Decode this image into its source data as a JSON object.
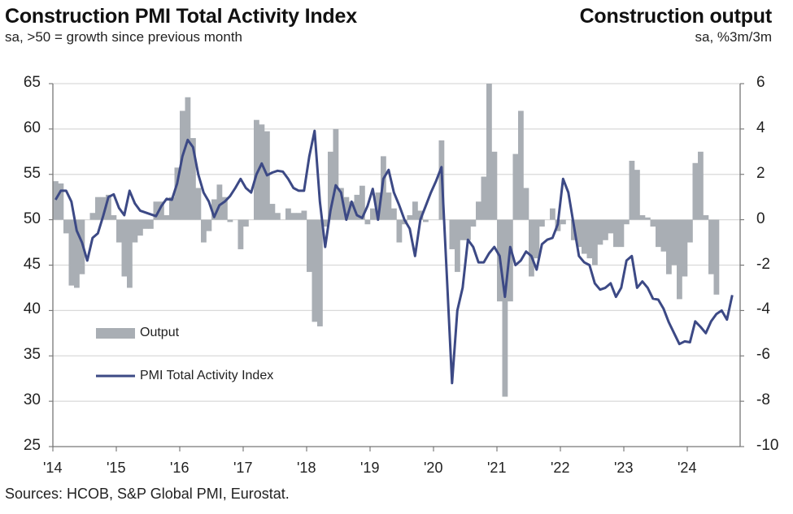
{
  "header": {
    "left_title": "Construction PMI Total Activity Index",
    "left_subtitle": "sa, >50 = growth since previous month",
    "right_title": "Construction output",
    "right_subtitle": "sa, %3m/3m"
  },
  "source": "Sources: HCOB, S&P Global PMI, Eurostat.",
  "colors": {
    "output_bars": "#a9aeb4",
    "pmi_line": "#3c4985",
    "grid": "#d9d9d9"
  },
  "chart_data": {
    "type": "bar+line",
    "x_tick_labels": [
      "'14",
      "'15",
      "'16",
      "'17",
      "'18",
      "'19",
      "'20",
      "'21",
      "'22",
      "'23",
      "'24"
    ],
    "frequency": "monthly",
    "start_month": "2014-01",
    "left_axis": {
      "ylim": [
        25,
        65
      ],
      "ticks": [
        65,
        60,
        55,
        50,
        45,
        40,
        35,
        30,
        25
      ]
    },
    "right_axis": {
      "ylim": [
        -10,
        6
      ],
      "ticks": [
        6,
        4,
        2,
        0,
        -2,
        -4,
        -6,
        -8,
        -10
      ]
    },
    "grid": true,
    "legend_placement": "bottom-left",
    "series": [
      {
        "name": "Output",
        "type": "bar",
        "axis": "right",
        "values": [
          1.7,
          1.6,
          -0.6,
          -2.9,
          -3.0,
          -2.4,
          0.0,
          0.3,
          1.0,
          1.0,
          1.1,
          0.2,
          -1.0,
          -2.5,
          -3.0,
          -1.0,
          -0.7,
          -0.4,
          -0.4,
          0.8,
          0.8,
          0.2,
          1.0,
          2.3,
          4.8,
          5.4,
          3.6,
          1.4,
          -1.0,
          -0.5,
          0.9,
          1.55,
          1.0,
          -0.1,
          0.0,
          -1.3,
          -0.3,
          0.0,
          4.4,
          4.2,
          3.9,
          0.7,
          0.3,
          0.0,
          0.5,
          0.3,
          0.3,
          0.4,
          -2.3,
          -4.5,
          -4.7,
          -0.3,
          3.0,
          4.0,
          1.4,
          1.0,
          0.8,
          1.1,
          1.5,
          -0.2,
          0.5,
          1.2,
          2.8,
          1.2,
          0.5,
          -1.0,
          -0.2,
          0.2,
          0.8,
          0.4,
          -0.1,
          0.0,
          0.0,
          3.5,
          0.0,
          -1.3,
          -2.3,
          -0.9,
          -0.9,
          -0.3,
          0.8,
          1.9,
          6.0,
          3.0,
          -3.6,
          -7.8,
          -3.6,
          2.9,
          4.8,
          1.4,
          -2.5,
          -1.7,
          -0.3,
          0.0,
          0.5,
          -0.5,
          -0.2,
          0.0,
          -0.9,
          -1.2,
          -1.5,
          -1.7,
          -2.0,
          -1.1,
          -0.9,
          -0.6,
          -1.2,
          -1.2,
          -0.2,
          2.6,
          2.2,
          0.2,
          0.1,
          -0.3,
          -1.2,
          -1.4,
          -2.4,
          -2.0,
          -3.5,
          -2.5,
          -1.0,
          2.5,
          3.0,
          0.2,
          -2.4,
          -3.3
        ]
      },
      {
        "name": "PMI Total Activity Index",
        "type": "line",
        "axis": "left",
        "values": [
          52.2,
          53.2,
          53.2,
          52.0,
          48.8,
          47.5,
          45.5,
          48.0,
          48.5,
          50.4,
          52.5,
          52.8,
          51.3,
          50.5,
          53.2,
          51.8,
          51.0,
          50.8,
          50.6,
          50.4,
          51.5,
          52.3,
          52.2,
          54.0,
          57.0,
          58.8,
          58.0,
          55.0,
          53.0,
          52.0,
          50.3,
          51.6,
          52.0,
          52.6,
          53.5,
          54.5,
          53.5,
          53.0,
          55.0,
          56.2,
          54.9,
          55.2,
          55.4,
          55.3,
          54.5,
          53.5,
          53.2,
          53.2,
          57.0,
          59.8,
          52.0,
          47.0,
          51.0,
          53.8,
          53.0,
          50.0,
          52.0,
          50.5,
          50.2,
          51.5,
          53.4,
          50.0,
          54.5,
          55.5,
          53.0,
          51.6,
          50.0,
          49.0,
          46.0,
          50.0,
          51.5,
          53.0,
          54.3,
          55.8,
          44.0,
          32.0,
          40.0,
          42.5,
          47.8,
          47.0,
          45.3,
          45.3,
          46.3,
          47.0,
          46.0,
          41.5,
          47.0,
          45.0,
          45.5,
          46.5,
          46.0,
          44.5,
          47.3,
          47.8,
          48.0,
          49.5,
          54.5,
          53.0,
          49.5,
          46.0,
          45.3,
          45.0,
          43.0,
          42.3,
          42.5,
          43.0,
          41.5,
          42.5,
          45.5,
          46.0,
          42.5,
          43.2,
          42.5,
          41.3,
          41.2,
          40.2,
          38.7,
          37.5,
          36.3,
          36.6,
          36.5,
          38.8,
          38.2,
          37.5,
          38.8,
          39.6,
          40.0,
          39.0,
          41.7
        ]
      }
    ]
  }
}
